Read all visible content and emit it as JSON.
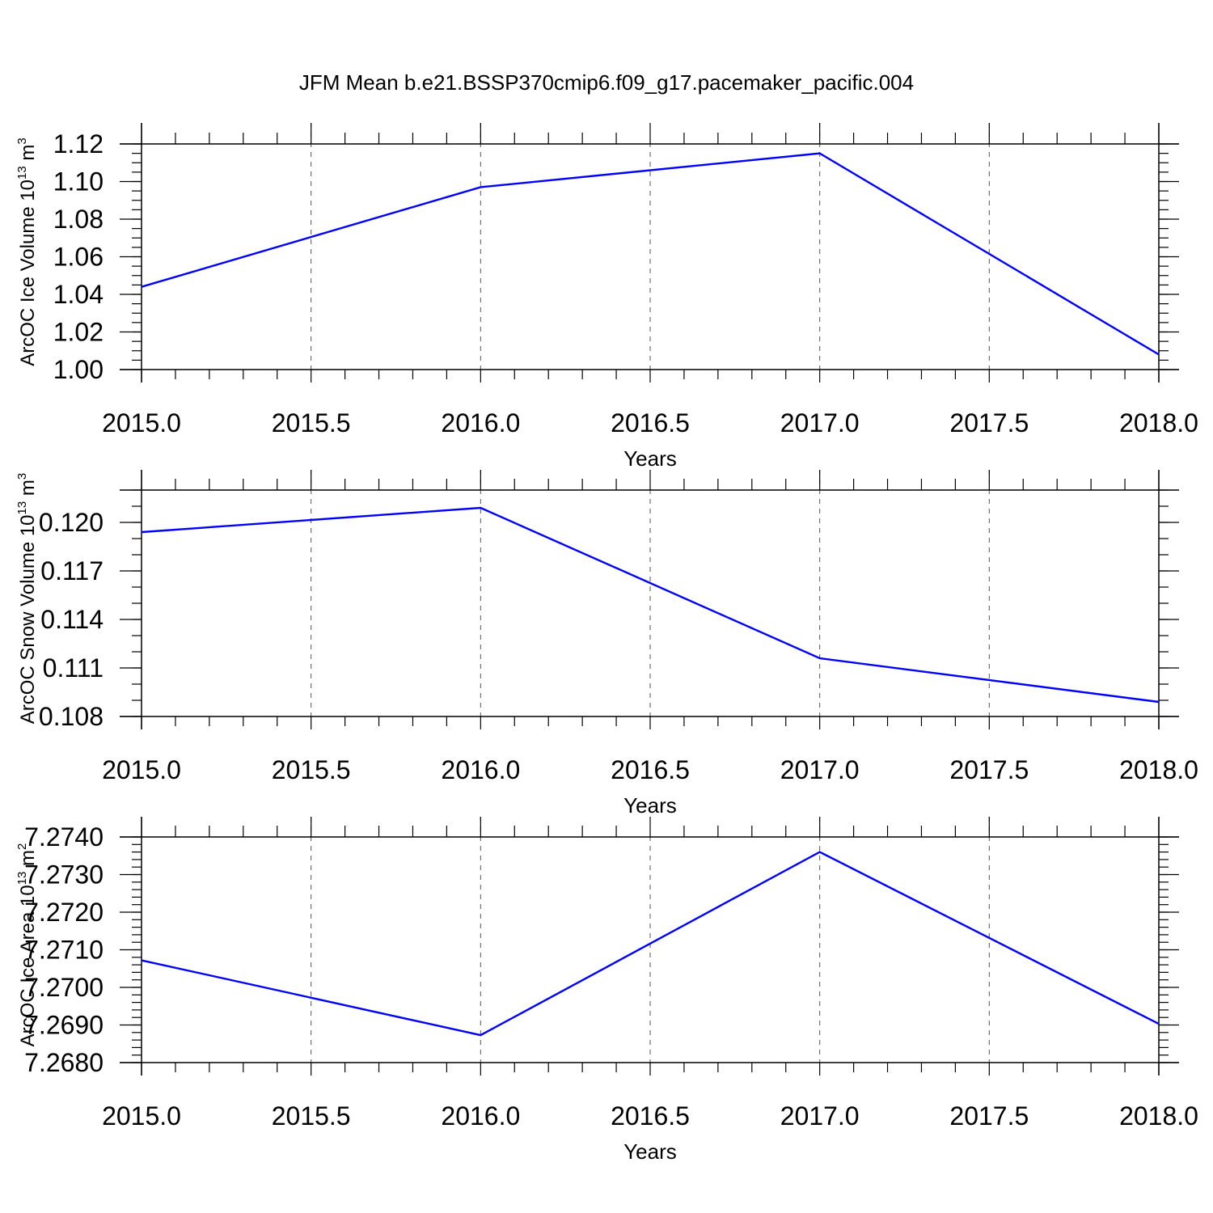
{
  "title": "JFM Mean b.e21.BSSP370cmip6.f09_g17.pacemaker_pacific.004",
  "chart_data": [
    {
      "type": "line",
      "ylabel": "ArcOC Ice Volume 10",
      "ylabel_sup": "13",
      "ylabel_unit": " m",
      "ylabel_unit_sup": "3",
      "xlabel": "Years",
      "xlim": [
        2015.0,
        2018.0
      ],
      "ylim": [
        1.0,
        1.12
      ],
      "x_ticks": [
        "2015.0",
        "2015.5",
        "2016.0",
        "2016.5",
        "2017.0",
        "2017.5",
        "2018.0"
      ],
      "y_ticks": [
        "1.00",
        "1.02",
        "1.04",
        "1.06",
        "1.08",
        "1.10",
        "1.12"
      ],
      "grid": "vertical dashed",
      "series": [
        {
          "color": "#0000ff",
          "x": [
            2015,
            2016,
            2017,
            2018
          ],
          "y": [
            1.044,
            1.097,
            1.115,
            1.008
          ]
        }
      ]
    },
    {
      "type": "line",
      "ylabel": "ArcOC Snow Volume 10",
      "ylabel_sup": "13",
      "ylabel_unit": " m",
      "ylabel_unit_sup": "3",
      "xlabel": "Years",
      "xlim": [
        2015.0,
        2018.0
      ],
      "ylim": [
        0.108,
        0.122
      ],
      "x_ticks": [
        "2015.0",
        "2015.5",
        "2016.0",
        "2016.5",
        "2017.0",
        "2017.5",
        "2018.0"
      ],
      "y_ticks": [
        "0.108",
        "0.111",
        "0.114",
        "0.117",
        "0.120"
      ],
      "grid": "vertical dashed",
      "series": [
        {
          "color": "#0000ff",
          "x": [
            2015,
            2016,
            2017,
            2018
          ],
          "y": [
            0.1194,
            0.1209,
            0.1116,
            0.1089
          ]
        }
      ]
    },
    {
      "type": "line",
      "ylabel": "ArcOC Ice Area 10",
      "ylabel_sup": "13",
      "ylabel_unit": " m",
      "ylabel_unit_sup": "2",
      "xlabel": "Years",
      "xlim": [
        2015.0,
        2018.0
      ],
      "ylim": [
        7.268,
        7.274
      ],
      "x_ticks": [
        "2015.0",
        "2015.5",
        "2016.0",
        "2016.5",
        "2017.0",
        "2017.5",
        "2018.0"
      ],
      "y_ticks": [
        "7.2680",
        "7.2690",
        "7.2700",
        "7.2710",
        "7.2720",
        "7.2730",
        "7.2740"
      ],
      "grid": "vertical dashed",
      "series": [
        {
          "color": "#0000ff",
          "x": [
            2015,
            2016,
            2017,
            2018
          ],
          "y": [
            7.27072,
            7.26873,
            7.2736,
            7.26903
          ]
        }
      ]
    }
  ]
}
